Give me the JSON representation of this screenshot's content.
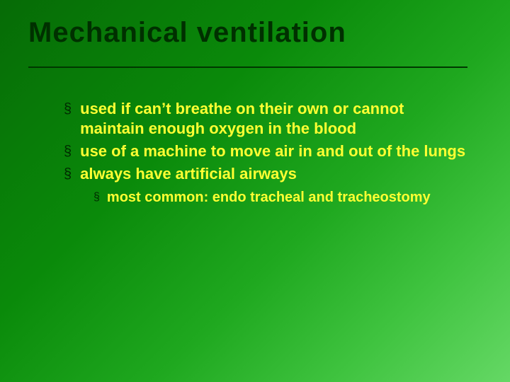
{
  "slide": {
    "title": "Mechanical ventilation",
    "background_gradient_start": "#066b06",
    "background_gradient_end": "#65d865",
    "title_color": "#003000",
    "bullet_color": "#002a00",
    "text_color": "#ffff33",
    "underline_color": "#003800",
    "title_fontsize": 40,
    "l1_fontsize": 22,
    "l2_fontsize": 20,
    "bullet_glyph": "§",
    "bullets": [
      {
        "text": "used if can’t breathe on their own or cannot maintain enough oxygen in the blood",
        "children": []
      },
      {
        "text": "use of a machine to move air in and out of the lungs",
        "children": []
      },
      {
        "text": "always have artificial airways",
        "children": [
          {
            "text": "most common: endo tracheal and tracheostomy"
          }
        ]
      }
    ]
  }
}
